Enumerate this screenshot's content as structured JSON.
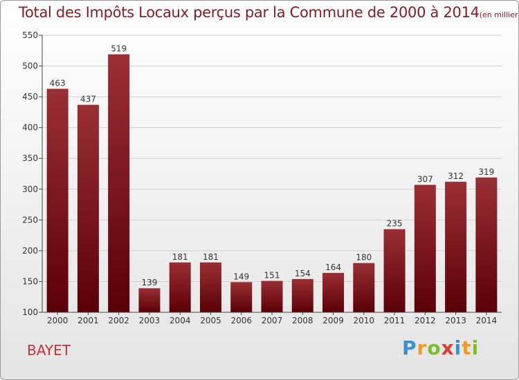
{
  "title": "Total des Impôts Locaux perçus par la Commune de 2000 à 2014",
  "subtitle": "(en milliers d'€)",
  "commune": "BAYET",
  "logo": {
    "letters": [
      "P",
      "r",
      "o",
      "x",
      "i",
      "t",
      "i"
    ],
    "colors": [
      "#3b8fd3",
      "#f39b1f",
      "#7bbf2a",
      "#e03a2f",
      "#3b8fd3",
      "#f39b1f",
      "#7bbf2a"
    ]
  },
  "chart_data": {
    "type": "bar",
    "categories": [
      "2000",
      "2001",
      "2002",
      "2003",
      "2004",
      "2005",
      "2006",
      "2007",
      "2008",
      "2009",
      "2010",
      "2011",
      "2012",
      "2013",
      "2014"
    ],
    "values": [
      463,
      437,
      519,
      139,
      181,
      181,
      149,
      151,
      154,
      164,
      180,
      235,
      307,
      312,
      319
    ],
    "ylim": [
      100,
      550
    ],
    "yticks": [
      100,
      150,
      200,
      250,
      300,
      350,
      400,
      450,
      500,
      550
    ],
    "grid": true,
    "bar_color_top": "#9a2f34",
    "bar_color_bottom": "#5a0006"
  }
}
